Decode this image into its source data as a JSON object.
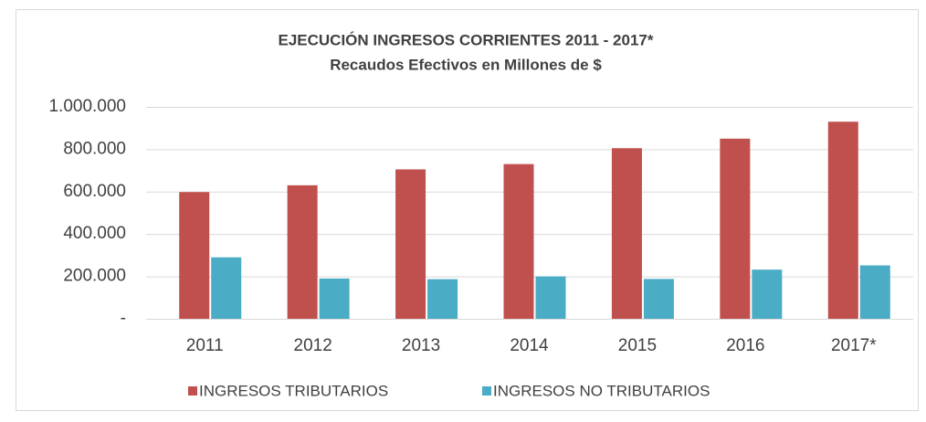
{
  "chart_data": {
    "type": "bar",
    "title": "EJECUCIÓN INGRESOS CORRIENTES 2011 - 2017*",
    "subtitle": "Recaudos Efectivos en Millones de $",
    "categories": [
      "2011",
      "2012",
      "2013",
      "2014",
      "2015",
      "2016",
      "2017*"
    ],
    "series": [
      {
        "name": "INGRESOS TRIBUTARIOS",
        "color": "#c0504d",
        "values": [
          598000,
          630000,
          705000,
          730000,
          805000,
          850000,
          930000
        ]
      },
      {
        "name": "INGRESOS NO TRIBUTARIOS",
        "color": "#4bacc6",
        "values": [
          290000,
          190000,
          187000,
          200000,
          188000,
          232000,
          252000
        ]
      }
    ],
    "ylim": [
      0,
      1000000
    ],
    "yticks": [
      {
        "value": 0,
        "label": "-"
      },
      {
        "value": 200000,
        "label": "200.000"
      },
      {
        "value": 400000,
        "label": "400.000"
      },
      {
        "value": 600000,
        "label": "600.000"
      },
      {
        "value": 800000,
        "label": "800.000"
      },
      {
        "value": 1000000,
        "label": "1.000.000"
      }
    ],
    "grid": true,
    "legend": "bottom"
  }
}
